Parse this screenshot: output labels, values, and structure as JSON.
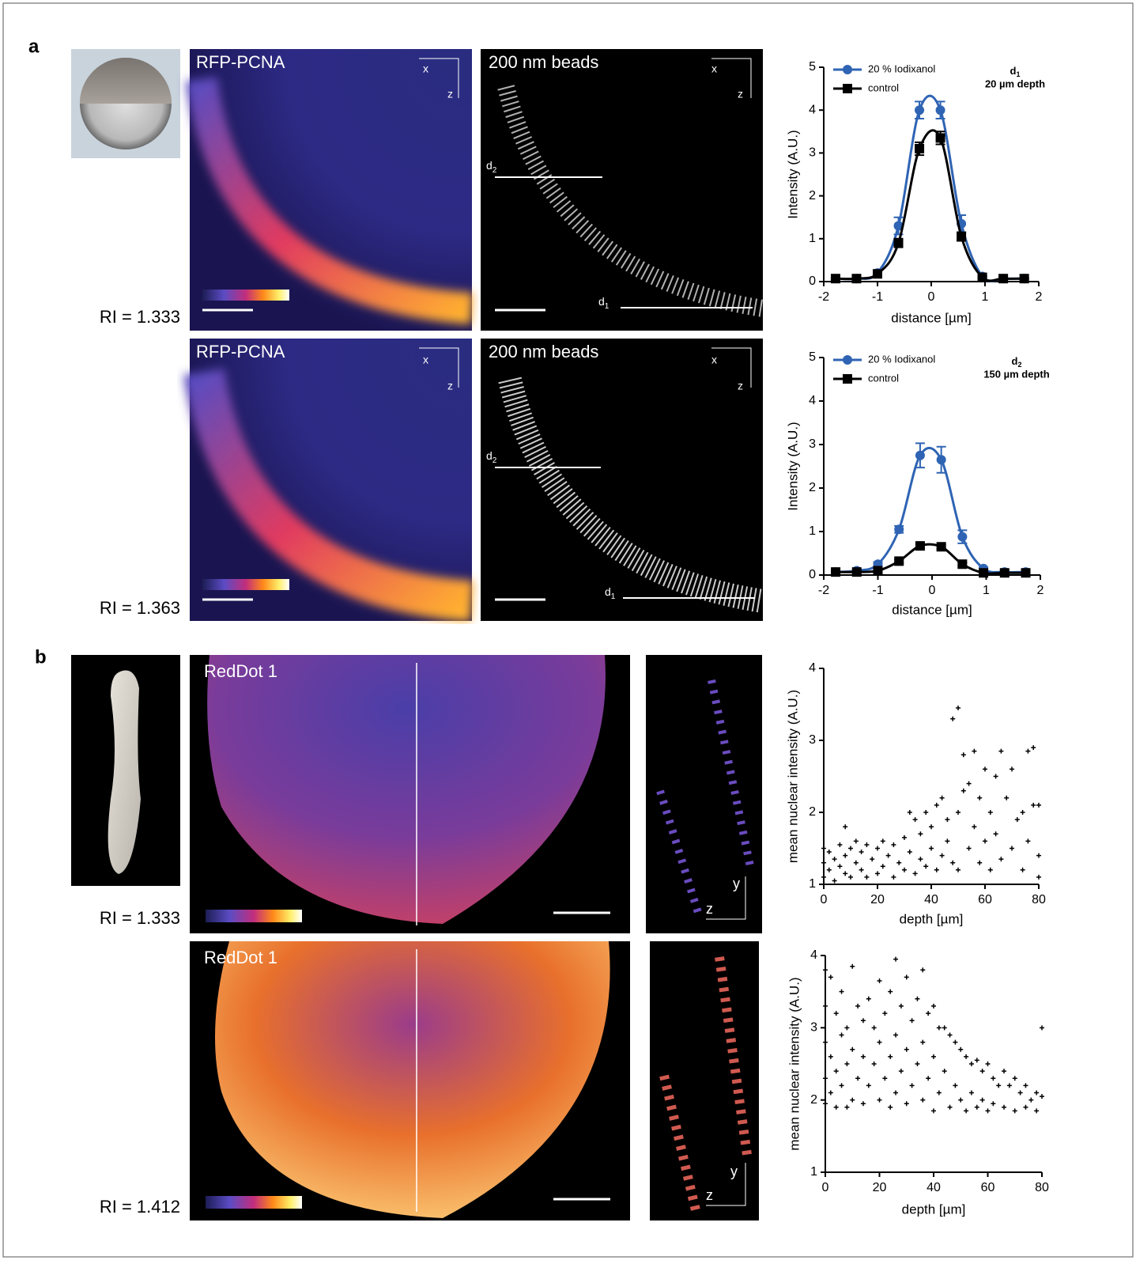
{
  "panel_labels": [
    "a",
    "b"
  ],
  "ri_labels": [
    "RI = 1.333",
    "RI = 1.363",
    "RI = 1.333",
    "RI = 1.412"
  ],
  "image_titles": [
    "RFP-PCNA",
    "200 nm beads",
    "RFP-PCNA",
    "200 nm beads",
    "RedDot 1",
    "RedDot 1"
  ],
  "axis_markers": [
    "x",
    "z",
    "x",
    "z",
    "x",
    "z",
    "x",
    "z",
    "y",
    "z",
    "y",
    "z"
  ],
  "profile_labels": [
    {
      "letter": "d",
      "sub": "2"
    },
    {
      "letter": "d",
      "sub": "1"
    },
    {
      "letter": "d",
      "sub": "2"
    },
    {
      "letter": "d",
      "sub": "1"
    }
  ],
  "chart_data": [
    {
      "type": "line",
      "xlabel": "distance [µm]",
      "ylabel": "Intensity (A.U.)",
      "annotation": {
        "letter": "d",
        "sub": "1",
        "text": "20 µm depth"
      },
      "x": [
        -1.78,
        -1.39,
        -1.0,
        -0.61,
        -0.22,
        0.17,
        0.56,
        0.95,
        1.34,
        1.73
      ],
      "series": [
        {
          "name": "20 % Iodixanol",
          "color": "#2f64b4",
          "marker": "circle",
          "values": [
            0.07,
            0.07,
            0.2,
            1.3,
            4.0,
            4.0,
            1.35,
            0.12,
            0.07,
            0.07
          ],
          "errors": [
            0.02,
            0.02,
            0.05,
            0.2,
            0.2,
            0.2,
            0.2,
            0.03,
            0.02,
            0.02
          ]
        },
        {
          "name": "control",
          "color": "#000000",
          "marker": "square",
          "values": [
            0.07,
            0.07,
            0.18,
            0.9,
            3.1,
            3.35,
            1.05,
            0.1,
            0.07,
            0.07
          ],
          "errors": [
            0.02,
            0.02,
            0.04,
            0.1,
            0.15,
            0.15,
            0.1,
            0.03,
            0.02,
            0.02
          ]
        }
      ],
      "xlim": [
        -2,
        2
      ],
      "xticks": [
        -2,
        -1,
        0,
        1,
        2
      ],
      "ylim": [
        0,
        5
      ],
      "yticks": [
        0,
        1,
        2,
        3,
        4,
        5
      ]
    },
    {
      "type": "line",
      "xlabel": "distance [µm]",
      "ylabel": "Intensity (A.U.)",
      "annotation": {
        "letter": "d",
        "sub": "2",
        "text": "150 µm depth"
      },
      "x": [
        -1.78,
        -1.39,
        -1.0,
        -0.61,
        -0.22,
        0.17,
        0.56,
        0.95,
        1.34,
        1.73
      ],
      "series": [
        {
          "name": "20 % Iodixanol",
          "color": "#2f64b4",
          "marker": "circle",
          "values": [
            0.07,
            0.1,
            0.25,
            1.05,
            2.75,
            2.65,
            0.88,
            0.15,
            0.07,
            0.07
          ],
          "errors": [
            0.02,
            0.02,
            0.05,
            0.08,
            0.28,
            0.3,
            0.15,
            0.03,
            0.02,
            0.02
          ]
        },
        {
          "name": "control",
          "color": "#000000",
          "marker": "square",
          "values": [
            0.07,
            0.07,
            0.1,
            0.32,
            0.67,
            0.65,
            0.25,
            0.05,
            0.05,
            0.05
          ],
          "errors": [
            0.02,
            0.02,
            0.02,
            0.04,
            0.05,
            0.05,
            0.04,
            0.02,
            0.02,
            0.02
          ]
        }
      ],
      "xlim": [
        -2,
        2
      ],
      "xticks": [
        -2,
        -1,
        0,
        1,
        2
      ],
      "ylim": [
        0,
        5
      ],
      "yticks": [
        0,
        1,
        2,
        3,
        4,
        5
      ]
    },
    {
      "type": "scatter",
      "xlabel": "depth [µm]",
      "ylabel": "mean nuclear intensity (A.U.)",
      "color": "#000000",
      "x": [
        0,
        0,
        0,
        2,
        2,
        4,
        4,
        6,
        6,
        8,
        8,
        8,
        10,
        10,
        12,
        12,
        14,
        14,
        16,
        16,
        18,
        20,
        20,
        22,
        22,
        24,
        26,
        26,
        28,
        30,
        30,
        32,
        32,
        34,
        34,
        36,
        36,
        38,
        38,
        40,
        40,
        42,
        42,
        44,
        44,
        46,
        46,
        48,
        48,
        50,
        50,
        50,
        52,
        52,
        54,
        54,
        56,
        56,
        58,
        58,
        60,
        60,
        62,
        62,
        64,
        64,
        66,
        66,
        68,
        70,
        70,
        72,
        74,
        74,
        76,
        76,
        78,
        78,
        80,
        80,
        80
      ],
      "values": [
        1.1,
        1.3,
        1.5,
        1.2,
        1.45,
        1.05,
        1.35,
        1.25,
        1.55,
        1.15,
        1.4,
        1.8,
        1.1,
        1.5,
        1.3,
        1.6,
        1.2,
        1.45,
        1.1,
        1.55,
        1.35,
        1.15,
        1.5,
        1.25,
        1.6,
        1.4,
        1.1,
        1.55,
        1.3,
        1.2,
        1.65,
        1.45,
        2.0,
        1.15,
        1.9,
        1.35,
        1.7,
        1.25,
        2.0,
        1.5,
        1.8,
        1.2,
        2.1,
        1.4,
        2.2,
        1.6,
        1.9,
        1.3,
        3.3,
        3.45,
        2.0,
        1.2,
        2.3,
        2.8,
        1.5,
        2.4,
        2.85,
        1.8,
        1.3,
        2.2,
        2.6,
        1.6,
        2.0,
        1.2,
        2.5,
        1.7,
        2.85,
        1.35,
        2.2,
        2.6,
        1.5,
        1.9,
        2.0,
        1.2,
        2.85,
        1.6,
        2.1,
        2.9,
        1.4,
        2.1,
        1.1
      ],
      "xlim": [
        0,
        80
      ],
      "xticks": [
        0,
        20,
        40,
        60,
        80
      ],
      "ylim": [
        1,
        4
      ],
      "yticks": [
        1,
        2,
        3,
        4
      ]
    },
    {
      "type": "scatter",
      "xlabel": "depth [µm]",
      "ylabel": "mean nuclear intensity (A.U.)",
      "color": "#000000",
      "x": [
        0,
        0,
        0,
        0,
        0,
        2,
        2,
        2,
        4,
        4,
        4,
        6,
        6,
        6,
        8,
        8,
        8,
        10,
        10,
        10,
        12,
        12,
        14,
        14,
        14,
        16,
        16,
        18,
        18,
        20,
        20,
        20,
        22,
        22,
        24,
        24,
        24,
        26,
        26,
        26,
        28,
        28,
        30,
        30,
        30,
        32,
        32,
        34,
        34,
        36,
        36,
        36,
        38,
        38,
        40,
        40,
        40,
        42,
        42,
        44,
        44,
        46,
        46,
        48,
        48,
        50,
        50,
        52,
        52,
        54,
        54,
        56,
        56,
        58,
        58,
        60,
        60,
        62,
        62,
        64,
        66,
        66,
        68,
        70,
        70,
        72,
        74,
        74,
        76,
        78,
        78,
        80,
        80
      ],
      "values": [
        3.8,
        3.3,
        2.8,
        2.3,
        1.95,
        3.7,
        2.6,
        2.1,
        3.2,
        2.4,
        1.9,
        3.5,
        2.9,
        2.2,
        3.0,
        2.5,
        1.9,
        3.85,
        2.7,
        2.0,
        3.3,
        2.3,
        3.1,
        2.6,
        1.95,
        3.4,
        2.2,
        3.0,
        2.5,
        3.65,
        2.8,
        2.0,
        3.2,
        2.3,
        3.5,
        2.6,
        1.9,
        3.95,
        2.9,
        2.1,
        3.3,
        2.4,
        3.7,
        2.7,
        1.95,
        3.1,
        2.2,
        3.4,
        2.5,
        3.8,
        2.8,
        2.0,
        3.2,
        2.3,
        3.3,
        2.6,
        1.85,
        3.0,
        2.1,
        3.0,
        2.4,
        2.9,
        1.9,
        2.8,
        2.2,
        2.7,
        2.0,
        2.6,
        1.85,
        2.5,
        2.1,
        2.55,
        1.9,
        2.4,
        2.0,
        2.5,
        1.85,
        2.3,
        1.95,
        2.2,
        2.4,
        1.9,
        2.2,
        2.3,
        1.85,
        2.1,
        2.2,
        1.9,
        2.0,
        2.1,
        1.85,
        3.0,
        2.05
      ],
      "xlim": [
        0,
        80
      ],
      "xticks": [
        0,
        20,
        40,
        60,
        80
      ],
      "ylim": [
        1,
        4
      ],
      "yticks": [
        1,
        2,
        3,
        4
      ]
    }
  ]
}
